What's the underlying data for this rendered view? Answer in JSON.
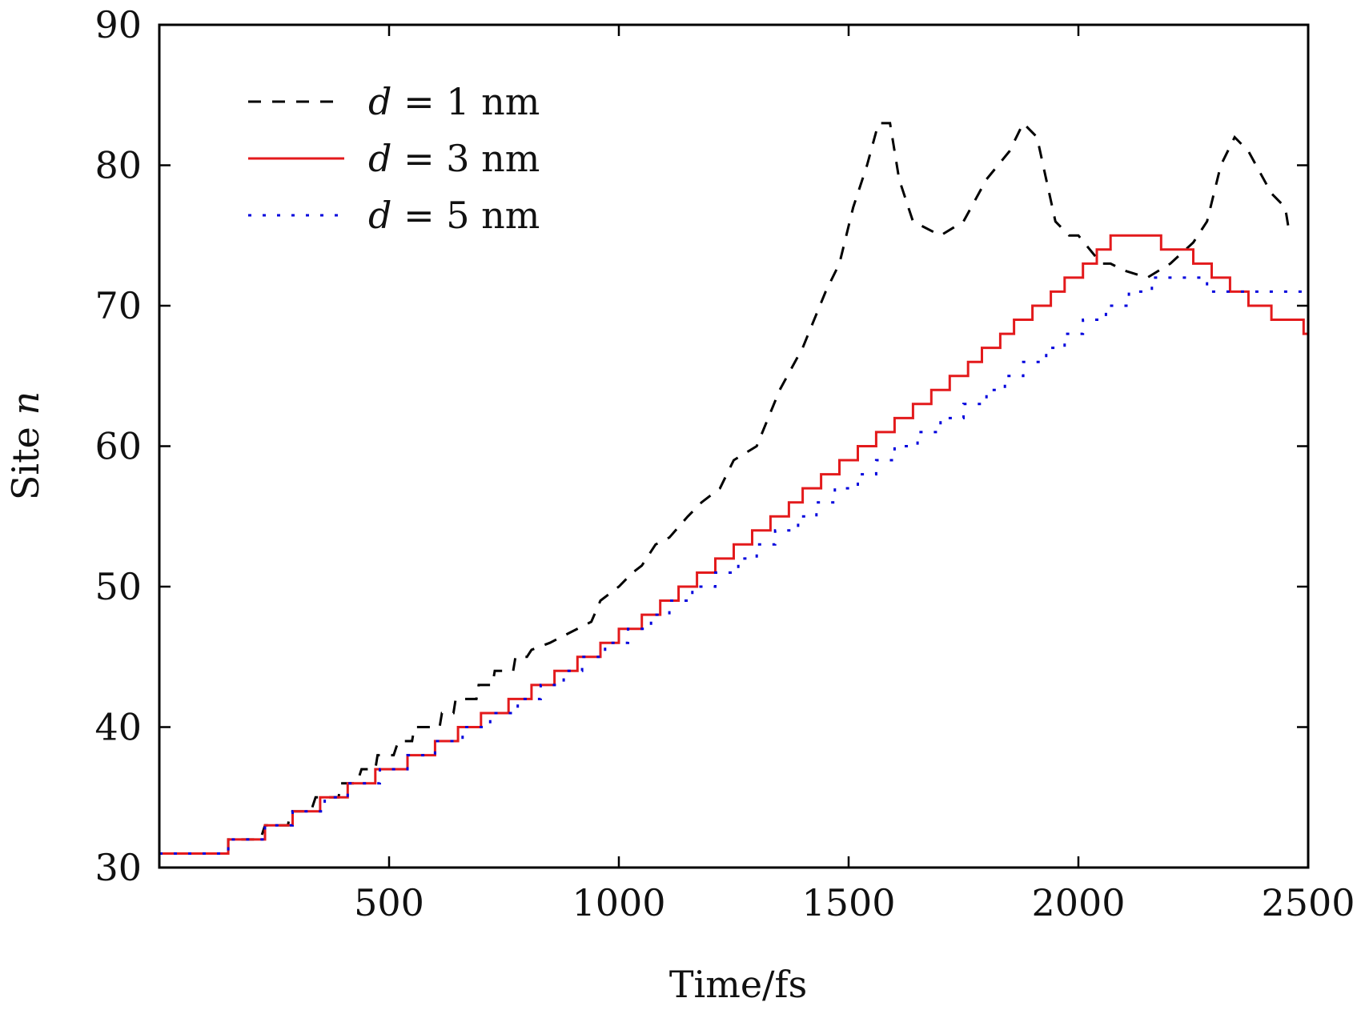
{
  "chart_data": {
    "type": "line",
    "xlabel": "Time/fs",
    "ylabel_text": "Site ",
    "ylabel_var": "n",
    "xlim": [
      0,
      2500
    ],
    "ylim": [
      30,
      90
    ],
    "x_ticks": [
      500,
      1000,
      1500,
      2000,
      2500
    ],
    "y_ticks": [
      30,
      40,
      50,
      60,
      70,
      80,
      90
    ],
    "grid": false,
    "legend_position": "top-left",
    "series": [
      {
        "name_var": "d",
        "name_rest": " = 1 nm",
        "style": "dashed",
        "color": "#000000",
        "points": [
          [
            0,
            31
          ],
          [
            150,
            31
          ],
          [
            150,
            32
          ],
          [
            220,
            32
          ],
          [
            230,
            33
          ],
          [
            280,
            33
          ],
          [
            285,
            34
          ],
          [
            330,
            34
          ],
          [
            340,
            35
          ],
          [
            390,
            35
          ],
          [
            395,
            36
          ],
          [
            430,
            36
          ],
          [
            440,
            37
          ],
          [
            470,
            37
          ],
          [
            475,
            38
          ],
          [
            510,
            38
          ],
          [
            520,
            39
          ],
          [
            550,
            39
          ],
          [
            555,
            40
          ],
          [
            610,
            40
          ],
          [
            615,
            41
          ],
          [
            640,
            41
          ],
          [
            645,
            42
          ],
          [
            690,
            42
          ],
          [
            695,
            43
          ],
          [
            725,
            43
          ],
          [
            730,
            44
          ],
          [
            770,
            44
          ],
          [
            775,
            45
          ],
          [
            800,
            45
          ],
          [
            810,
            45.5
          ],
          [
            850,
            46
          ],
          [
            880,
            46.5
          ],
          [
            940,
            47.5
          ],
          [
            960,
            49
          ],
          [
            1000,
            50
          ],
          [
            1030,
            51
          ],
          [
            1050,
            51.5
          ],
          [
            1080,
            53
          ],
          [
            1110,
            53.5
          ],
          [
            1150,
            55
          ],
          [
            1180,
            56
          ],
          [
            1220,
            57
          ],
          [
            1250,
            59
          ],
          [
            1300,
            60
          ],
          [
            1350,
            64
          ],
          [
            1400,
            67
          ],
          [
            1450,
            71
          ],
          [
            1480,
            73
          ],
          [
            1510,
            77
          ],
          [
            1540,
            80
          ],
          [
            1565,
            83
          ],
          [
            1590,
            83
          ],
          [
            1610,
            79
          ],
          [
            1640,
            76
          ],
          [
            1700,
            75
          ],
          [
            1750,
            76
          ],
          [
            1800,
            79
          ],
          [
            1850,
            81
          ],
          [
            1880,
            83
          ],
          [
            1910,
            82
          ],
          [
            1950,
            76
          ],
          [
            1980,
            75
          ],
          [
            2000,
            75
          ],
          [
            2050,
            73
          ],
          [
            2070,
            73
          ],
          [
            2100,
            72.5
          ],
          [
            2150,
            72
          ],
          [
            2200,
            73
          ],
          [
            2250,
            74.5
          ],
          [
            2280,
            76
          ],
          [
            2310,
            80
          ],
          [
            2340,
            82
          ],
          [
            2370,
            81
          ],
          [
            2420,
            78
          ],
          [
            2450,
            77
          ],
          [
            2460,
            75
          ]
        ]
      },
      {
        "name_var": "d",
        "name_rest": " = 3 nm",
        "style": "solid",
        "color": "#e31a1c",
        "points": [
          [
            0,
            31
          ],
          [
            150,
            31
          ],
          [
            150,
            32
          ],
          [
            230,
            32
          ],
          [
            230,
            33
          ],
          [
            290,
            33
          ],
          [
            290,
            34
          ],
          [
            350,
            34
          ],
          [
            350,
            35
          ],
          [
            410,
            35
          ],
          [
            410,
            36
          ],
          [
            470,
            36
          ],
          [
            470,
            37
          ],
          [
            540,
            37
          ],
          [
            540,
            38
          ],
          [
            600,
            38
          ],
          [
            600,
            39
          ],
          [
            650,
            39
          ],
          [
            650,
            40
          ],
          [
            700,
            40
          ],
          [
            700,
            41
          ],
          [
            760,
            41
          ],
          [
            760,
            42
          ],
          [
            810,
            42
          ],
          [
            810,
            43
          ],
          [
            860,
            43
          ],
          [
            860,
            44
          ],
          [
            910,
            44
          ],
          [
            910,
            45
          ],
          [
            960,
            45
          ],
          [
            960,
            46
          ],
          [
            1000,
            46
          ],
          [
            1000,
            47
          ],
          [
            1050,
            47
          ],
          [
            1050,
            48
          ],
          [
            1090,
            48
          ],
          [
            1090,
            49
          ],
          [
            1130,
            49
          ],
          [
            1130,
            50
          ],
          [
            1170,
            50
          ],
          [
            1170,
            51
          ],
          [
            1210,
            51
          ],
          [
            1210,
            52
          ],
          [
            1250,
            52
          ],
          [
            1250,
            53
          ],
          [
            1290,
            53
          ],
          [
            1290,
            54
          ],
          [
            1330,
            54
          ],
          [
            1330,
            55
          ],
          [
            1370,
            55
          ],
          [
            1370,
            56
          ],
          [
            1400,
            56
          ],
          [
            1400,
            57
          ],
          [
            1440,
            57
          ],
          [
            1440,
            58
          ],
          [
            1480,
            58
          ],
          [
            1480,
            59
          ],
          [
            1520,
            59
          ],
          [
            1520,
            60
          ],
          [
            1560,
            60
          ],
          [
            1560,
            61
          ],
          [
            1600,
            61
          ],
          [
            1600,
            62
          ],
          [
            1640,
            62
          ],
          [
            1640,
            63
          ],
          [
            1680,
            63
          ],
          [
            1680,
            64
          ],
          [
            1720,
            64
          ],
          [
            1720,
            65
          ],
          [
            1760,
            65
          ],
          [
            1760,
            66
          ],
          [
            1790,
            66
          ],
          [
            1790,
            67
          ],
          [
            1830,
            67
          ],
          [
            1830,
            68
          ],
          [
            1860,
            68
          ],
          [
            1860,
            69
          ],
          [
            1900,
            69
          ],
          [
            1900,
            70
          ],
          [
            1940,
            70
          ],
          [
            1940,
            71
          ],
          [
            1970,
            71
          ],
          [
            1970,
            72
          ],
          [
            2010,
            72
          ],
          [
            2010,
            73
          ],
          [
            2040,
            73
          ],
          [
            2040,
            74
          ],
          [
            2070,
            74
          ],
          [
            2070,
            75
          ],
          [
            2180,
            75
          ],
          [
            2180,
            74
          ],
          [
            2250,
            74
          ],
          [
            2250,
            73
          ],
          [
            2290,
            73
          ],
          [
            2290,
            72
          ],
          [
            2330,
            72
          ],
          [
            2330,
            71
          ],
          [
            2370,
            71
          ],
          [
            2370,
            70
          ],
          [
            2420,
            70
          ],
          [
            2420,
            69
          ],
          [
            2490,
            69
          ],
          [
            2490,
            68
          ],
          [
            2500,
            68
          ]
        ]
      },
      {
        "name_var": "d",
        "name_rest": " = 5 nm",
        "style": "dotted",
        "color": "#0000dd",
        "points": [
          [
            0,
            31
          ],
          [
            150,
            31
          ],
          [
            150,
            32
          ],
          [
            230,
            32
          ],
          [
            230,
            33
          ],
          [
            290,
            33
          ],
          [
            290,
            34
          ],
          [
            360,
            34
          ],
          [
            360,
            35
          ],
          [
            410,
            35
          ],
          [
            410,
            36
          ],
          [
            480,
            36
          ],
          [
            480,
            37
          ],
          [
            540,
            37
          ],
          [
            540,
            38
          ],
          [
            600,
            38
          ],
          [
            600,
            39
          ],
          [
            660,
            39
          ],
          [
            660,
            40
          ],
          [
            720,
            40
          ],
          [
            720,
            41
          ],
          [
            780,
            41
          ],
          [
            780,
            42
          ],
          [
            830,
            42
          ],
          [
            830,
            43
          ],
          [
            880,
            43
          ],
          [
            880,
            44
          ],
          [
            920,
            44
          ],
          [
            920,
            45
          ],
          [
            970,
            45
          ],
          [
            970,
            46
          ],
          [
            1020,
            46
          ],
          [
            1020,
            47
          ],
          [
            1070,
            47
          ],
          [
            1070,
            48
          ],
          [
            1110,
            48
          ],
          [
            1110,
            49
          ],
          [
            1160,
            49
          ],
          [
            1160,
            50
          ],
          [
            1210,
            50
          ],
          [
            1210,
            51
          ],
          [
            1260,
            51
          ],
          [
            1260,
            52
          ],
          [
            1300,
            52
          ],
          [
            1300,
            53
          ],
          [
            1340,
            53
          ],
          [
            1340,
            54
          ],
          [
            1390,
            54
          ],
          [
            1390,
            55
          ],
          [
            1430,
            55
          ],
          [
            1430,
            56
          ],
          [
            1470,
            56
          ],
          [
            1470,
            57
          ],
          [
            1520,
            57
          ],
          [
            1520,
            58
          ],
          [
            1560,
            58
          ],
          [
            1560,
            59
          ],
          [
            1600,
            59
          ],
          [
            1600,
            60
          ],
          [
            1650,
            60
          ],
          [
            1650,
            61
          ],
          [
            1700,
            61
          ],
          [
            1700,
            62
          ],
          [
            1750,
            62
          ],
          [
            1750,
            63
          ],
          [
            1800,
            63
          ],
          [
            1800,
            64
          ],
          [
            1840,
            64
          ],
          [
            1840,
            65
          ],
          [
            1880,
            65
          ],
          [
            1880,
            66
          ],
          [
            1930,
            66
          ],
          [
            1930,
            67
          ],
          [
            1970,
            67
          ],
          [
            1970,
            68
          ],
          [
            2010,
            68
          ],
          [
            2010,
            69
          ],
          [
            2060,
            69
          ],
          [
            2060,
            70
          ],
          [
            2110,
            70
          ],
          [
            2110,
            71
          ],
          [
            2160,
            71
          ],
          [
            2160,
            72
          ],
          [
            2280,
            72
          ],
          [
            2280,
            71
          ],
          [
            2500,
            71
          ]
        ]
      }
    ]
  }
}
